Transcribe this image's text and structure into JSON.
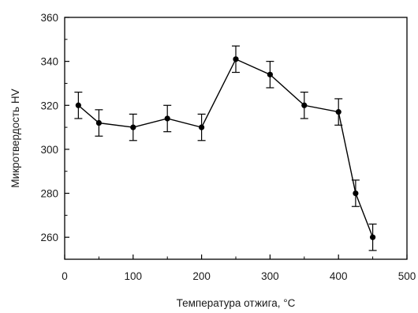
{
  "chart_data": {
    "type": "line",
    "title": "",
    "xlabel": "Температура отжига, °С",
    "ylabel": "Микротвердость HV",
    "xlim": [
      0,
      500
    ],
    "ylim": [
      250,
      360
    ],
    "x_ticks": [
      0,
      100,
      200,
      300,
      400,
      500
    ],
    "y_ticks": [
      260,
      280,
      300,
      320,
      340,
      360
    ],
    "grid": false,
    "legend": "none",
    "series": [
      {
        "x": [
          20,
          50,
          100,
          150,
          200,
          250,
          300,
          350,
          400,
          425,
          450
        ],
        "y": [
          320,
          312,
          310,
          314,
          310,
          341,
          334,
          320,
          317,
          280,
          260
        ],
        "error": [
          6,
          6,
          6,
          6,
          6,
          6,
          6,
          6,
          6,
          6,
          6
        ],
        "color": "#000000",
        "marker": "circle"
      }
    ]
  }
}
